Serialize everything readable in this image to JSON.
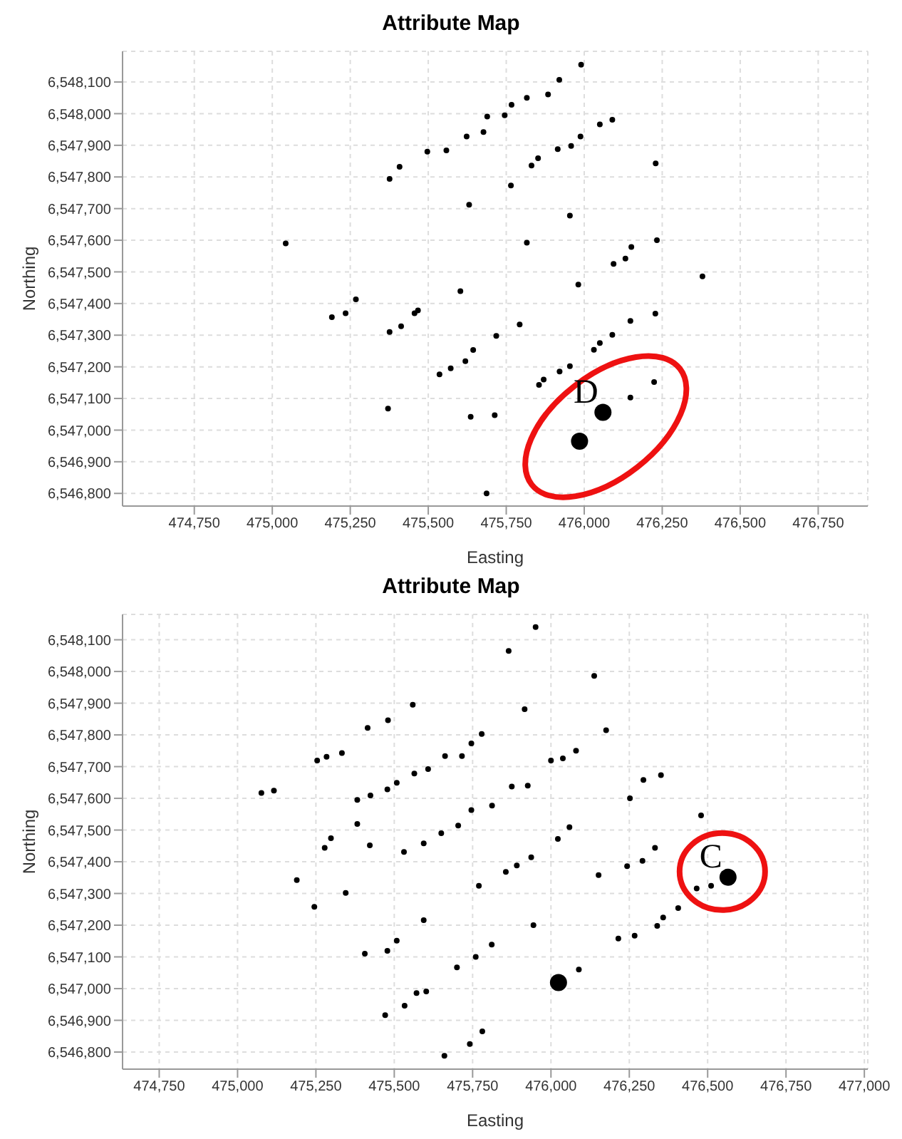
{
  "chart_data": [
    {
      "type": "scatter",
      "title": "Attribute Map",
      "xlabel": "Easting",
      "ylabel": "Northing",
      "xlim": [
        474520,
        476909
      ],
      "ylim": [
        6546760,
        6548197
      ],
      "xticks": [
        {
          "value": 474750,
          "label": "474,750"
        },
        {
          "value": 475000,
          "label": "475,000"
        },
        {
          "value": 475250,
          "label": "475,250"
        },
        {
          "value": 475500,
          "label": "475,500"
        },
        {
          "value": 475750,
          "label": "475,750"
        },
        {
          "value": 476000,
          "label": "476,000"
        },
        {
          "value": 476250,
          "label": "476,250"
        },
        {
          "value": 476500,
          "label": "476,500"
        },
        {
          "value": 476750,
          "label": "476,750"
        }
      ],
      "yticks": [
        {
          "value": 6546800,
          "label": "6,546,800"
        },
        {
          "value": 6546900,
          "label": "6,546,900"
        },
        {
          "value": 6547000,
          "label": "6,547,000"
        },
        {
          "value": 6547100,
          "label": "6,547,100"
        },
        {
          "value": 6547200,
          "label": "6,547,200"
        },
        {
          "value": 6547300,
          "label": "6,547,300"
        },
        {
          "value": 6547400,
          "label": "6,547,400"
        },
        {
          "value": 6547500,
          "label": "6,547,500"
        },
        {
          "value": 6547600,
          "label": "6,547,600"
        },
        {
          "value": 6547700,
          "label": "6,547,700"
        },
        {
          "value": 6547800,
          "label": "6,547,800"
        },
        {
          "value": 6547900,
          "label": "6,547,900"
        },
        {
          "value": 6548000,
          "label": "6,548,000"
        },
        {
          "value": 6548100,
          "label": "6,548,100"
        }
      ],
      "grid": true,
      "marker": "circle",
      "annotations": [
        "D"
      ],
      "series": [
        {
          "color": "#000000",
          "x": [
            475990,
            475920,
            475884,
            475816,
            475767,
            475689,
            475745,
            475623,
            475677,
            475558,
            475497,
            475408,
            475376,
            475988,
            475958,
            475915,
            475852,
            475831,
            476050,
            476090,
            476229,
            475765,
            475631,
            475954,
            475043,
            475816,
            476233,
            476151,
            476132,
            476094,
            476379,
            475981,
            475191,
            475235,
            475268,
            475456,
            475467,
            475603,
            475376,
            475413,
            475793,
            475718,
            476090,
            476148,
            476228,
            476050,
            476031,
            475644,
            475619,
            475572,
            475536,
            475954,
            475921,
            475870,
            475855,
            476224,
            476148,
            475371,
            475636,
            475713,
            475687
          ],
          "values": [
            6548155,
            6548107,
            6548061,
            6548050,
            6548028,
            6547991,
            6547995,
            6547928,
            6547942,
            6547884,
            6547880,
            6547832,
            6547794,
            6547928,
            6547898,
            6547888,
            6547859,
            6547836,
            6547966,
            6547981,
            6547843,
            6547773,
            6547712,
            6547678,
            6547590,
            6547592,
            6547600,
            6547579,
            6547542,
            6547525,
            6547486,
            6547460,
            6547357,
            6547369,
            6547413,
            6547369,
            6547378,
            6547439,
            6547310,
            6547328,
            6547334,
            6547298,
            6547301,
            6547345,
            6547368,
            6547275,
            6547254,
            6547253,
            6547218,
            6547195,
            6547176,
            6547202,
            6547185,
            6547160,
            6547143,
            6547152,
            6547103,
            6547068,
            6547042,
            6547047,
            6546800
          ]
        },
        {
          "color": "#000000",
          "x": [
            476060,
            475985
          ],
          "values": [
            6547056,
            6546965
          ]
        }
      ]
    },
    {
      "type": "scatter",
      "title": "Attribute Map",
      "xlabel": "Easting",
      "ylabel": "Northing",
      "xlim": [
        474633,
        477011
      ],
      "ylim": [
        6546746,
        6548180
      ],
      "xticks": [
        {
          "value": 474750,
          "label": "474,750"
        },
        {
          "value": 475000,
          "label": "475,000"
        },
        {
          "value": 475250,
          "label": "475,250"
        },
        {
          "value": 475500,
          "label": "475,500"
        },
        {
          "value": 475750,
          "label": "475,750"
        },
        {
          "value": 476000,
          "label": "476,000"
        },
        {
          "value": 476250,
          "label": "476,250"
        },
        {
          "value": 476500,
          "label": "476,500"
        },
        {
          "value": 476750,
          "label": "476,750"
        },
        {
          "value": 477000,
          "label": "477,000"
        }
      ],
      "yticks": [
        {
          "value": 6546800,
          "label": "6,546,800"
        },
        {
          "value": 6546900,
          "label": "6,546,900"
        },
        {
          "value": 6547000,
          "label": "6,547,000"
        },
        {
          "value": 6547100,
          "label": "6,547,100"
        },
        {
          "value": 6547200,
          "label": "6,547,200"
        },
        {
          "value": 6547300,
          "label": "6,547,300"
        },
        {
          "value": 6547400,
          "label": "6,547,400"
        },
        {
          "value": 6547500,
          "label": "6,547,500"
        },
        {
          "value": 6547600,
          "label": "6,547,600"
        },
        {
          "value": 6547700,
          "label": "6,547,700"
        },
        {
          "value": 6547800,
          "label": "6,547,800"
        },
        {
          "value": 6547900,
          "label": "6,547,900"
        },
        {
          "value": 6548000,
          "label": "6,548,000"
        },
        {
          "value": 6548100,
          "label": "6,548,100"
        }
      ],
      "grid": true,
      "marker": "circle",
      "annotations": [
        "C"
      ],
      "series": [
        {
          "color": "#000000",
          "x": [
            475951,
            475865,
            476138,
            475916,
            475559,
            476176,
            475480,
            475415,
            475779,
            475746,
            476080,
            476038,
            476000,
            475662,
            475716,
            475333,
            475284,
            475254,
            475608,
            475564,
            475508,
            475478,
            475424,
            475382,
            475076,
            475116,
            475875,
            475926,
            475812,
            475746,
            476252,
            476295,
            476351,
            476479,
            475704,
            475650,
            476059,
            475382,
            475298,
            476022,
            475278,
            475422,
            475594,
            475531,
            476332,
            476292,
            476243,
            475937,
            475891,
            475856,
            476152,
            475770,
            475189,
            475345,
            475245,
            476465,
            476511,
            476406,
            476358,
            476339,
            476267,
            476215,
            475944,
            475594,
            475508,
            475406,
            475478,
            475811,
            475760,
            475700,
            476089,
            475602,
            475571,
            475533,
            475471,
            475781,
            475741,
            475660
          ],
          "values": [
            6548140,
            6548065,
            6547986,
            6547881,
            6547895,
            6547815,
            6547846,
            6547822,
            6547803,
            6547773,
            6547750,
            6547726,
            6547719,
            6547733,
            6547733,
            6547743,
            6547731,
            6547719,
            6547692,
            6547678,
            6547649,
            6547628,
            6547609,
            6547595,
            6547617,
            6547624,
            6547637,
            6547640,
            6547577,
            6547563,
            6547600,
            6547658,
            6547673,
            6547546,
            6547514,
            6547490,
            6547509,
            6547519,
            6547474,
            6547472,
            6547444,
            6547452,
            6547458,
            6547431,
            6547444,
            6547403,
            6547386,
            6547414,
            6547388,
            6547368,
            6547358,
            6547324,
            6547342,
            6547302,
            6547258,
            6547316,
            6547324,
            6547254,
            6547224,
            6547198,
            6547167,
            6547158,
            6547200,
            6547216,
            6547151,
            6547110,
            6547119,
            6547139,
            6547100,
            6547067,
            6547060,
            6546991,
            6546986,
            6546946,
            6546916,
            6546865,
            6546825,
            6546788
          ]
        },
        {
          "color": "#000000",
          "x": [
            476565,
            476024
          ],
          "values": [
            6547351,
            6547019
          ]
        }
      ]
    }
  ]
}
